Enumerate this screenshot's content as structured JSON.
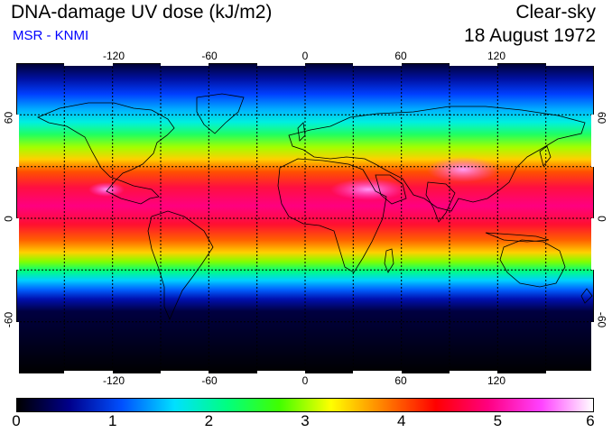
{
  "header": {
    "title": "DNA-damage UV dose (kJ/m2)",
    "credit": "MSR - KNMI",
    "mode": "Clear-sky",
    "date": "18 August 1972"
  },
  "map": {
    "longitude_ticks": [
      "-120",
      "-60",
      "0",
      "60",
      "120"
    ],
    "latitude_ticks": [
      "60",
      "0",
      "-60"
    ],
    "lon_range": [
      -180,
      180
    ],
    "lat_range": [
      -90,
      90
    ],
    "grid_lon_step": 30,
    "grid_lat_step": 30
  },
  "colorbar": {
    "labels": [
      "0",
      "1",
      "2",
      "3",
      "4",
      "5",
      "6"
    ],
    "min": 0,
    "max": 6,
    "stops": [
      "#000000",
      "#00008b",
      "#0050ff",
      "#00e0ff",
      "#00ff80",
      "#40ff00",
      "#ffff00",
      "#ff8000",
      "#ff0000",
      "#ff0080",
      "#ff40ff",
      "#ffffff"
    ]
  }
}
